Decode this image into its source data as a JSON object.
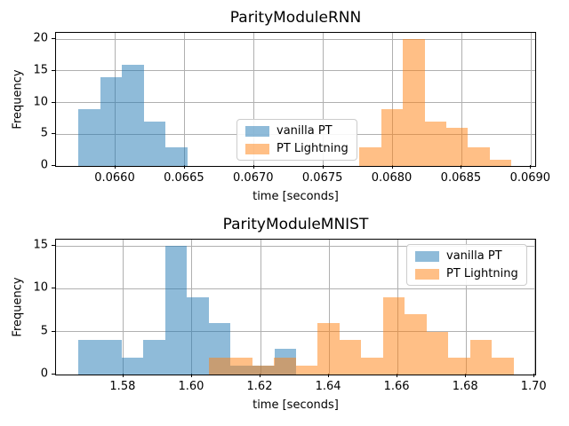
{
  "window": {
    "kind": "matplotlib-figure",
    "background": "#ffffff",
    "grid_color": "#b0b0b0"
  },
  "legend_labels": [
    "vanilla PT",
    "PT Lightning"
  ],
  "chart_data": [
    {
      "type": "bar",
      "subtype": "histogram-overlay",
      "title": "ParityModuleRNN",
      "xlabel": "time [seconds]",
      "ylabel": "Frequency",
      "xlim": [
        0.06557,
        0.06903
      ],
      "ylim": [
        0,
        21
      ],
      "grid": true,
      "xticks": {
        "values": [
          0.066,
          0.0665,
          0.067,
          0.0675,
          0.068,
          0.0685,
          0.069
        ],
        "labels": [
          "0.0660",
          "0.0665",
          "0.0670",
          "0.0675",
          "0.0680",
          "0.0685",
          "0.0690"
        ]
      },
      "yticks": {
        "values": [
          0,
          5,
          10,
          15,
          20
        ],
        "labels": [
          "0",
          "5",
          "10",
          "15",
          "20"
        ]
      },
      "legend_position": "center",
      "series": [
        {
          "name": "vanilla PT",
          "color": "#1f77b4",
          "alpha": 0.5,
          "bin_start": 0.06573,
          "bin_width": 0.000158,
          "counts": [
            9,
            14,
            16,
            7,
            3
          ]
        },
        {
          "name": "PT Lightning",
          "color": "#ff7f0e",
          "alpha": 0.5,
          "bin_start": 0.06776,
          "bin_width": 0.000157,
          "counts": [
            3,
            9,
            20,
            7,
            6,
            3,
            1
          ]
        }
      ]
    },
    {
      "type": "bar",
      "subtype": "histogram-overlay",
      "title": "ParityModuleMNIST",
      "xlabel": "time [seconds]",
      "ylabel": "Frequency",
      "xlim": [
        1.5603,
        1.7002
      ],
      "ylim": [
        0,
        15.75
      ],
      "grid": true,
      "xticks": {
        "values": [
          1.58,
          1.6,
          1.62,
          1.64,
          1.66,
          1.68,
          1.7
        ],
        "labels": [
          "1.58",
          "1.60",
          "1.62",
          "1.64",
          "1.66",
          "1.68",
          "1.70"
        ]
      },
      "yticks": {
        "values": [
          0,
          5,
          10,
          15
        ],
        "labels": [
          "0",
          "5",
          "10",
          "15"
        ]
      },
      "legend_position": "upper right",
      "series": [
        {
          "name": "vanilla PT",
          "color": "#1f77b4",
          "alpha": 0.5,
          "bin_start": 1.5667,
          "bin_width": 0.00637,
          "counts": [
            4,
            4,
            2,
            4,
            15,
            9,
            6,
            1,
            1,
            3
          ]
        },
        {
          "name": "PT Lightning",
          "color": "#ff7f0e",
          "alpha": 0.5,
          "bin_start": 1.6049,
          "bin_width": 0.00636,
          "counts": [
            2,
            2,
            1,
            2,
            1,
            6,
            4,
            2,
            9,
            7,
            5,
            2,
            4,
            2
          ]
        }
      ]
    }
  ]
}
